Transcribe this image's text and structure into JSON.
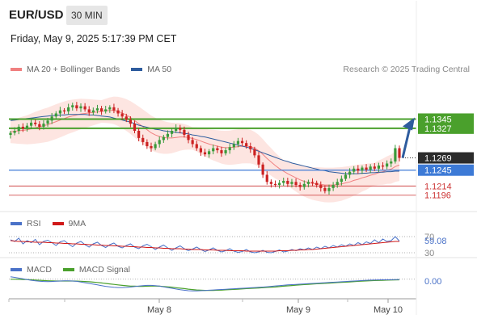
{
  "header": {
    "symbol": "EUR/USD",
    "timeframe": "30 MIN",
    "datetime": "Friday, May 9, 2025 5:17:39 PM CET"
  },
  "legend_main": [
    {
      "label": "MA 20 + Bollinger Bands",
      "color": "#f08080"
    },
    {
      "label": "MA 50",
      "color": "#2e5c9e"
    }
  ],
  "credit": "Research © 2025 Trading Central",
  "legend_rsi": [
    {
      "label": "RSI",
      "color": "#4a72c8"
    },
    {
      "label": "9MA",
      "color": "#d01818"
    }
  ],
  "legend_macd": [
    {
      "label": "MACD",
      "color": "#4a72c8"
    },
    {
      "label": "MACD Signal",
      "color": "#4aa02c"
    }
  ],
  "colors": {
    "green_level": "#4aa02c",
    "blue_level": "#3d7ad6",
    "red_level": "#cc3333",
    "current_badge": "#2b2b2b",
    "arrow": "#2e5c9e",
    "candle_up": "#3a9a3a",
    "candle_down": "#cc2222"
  },
  "chart_data": {
    "type": "candlestick",
    "price_axis": {
      "min": 1.1175,
      "max": 1.142
    },
    "x_ticks": [
      "May 8",
      "May 9",
      "May 10"
    ],
    "levels": [
      {
        "value": 1.1345,
        "label": "1.1345",
        "style": "green-badge"
      },
      {
        "value": 1.1327,
        "label": "1.1327",
        "style": "green-badge"
      },
      {
        "value": 1.1269,
        "label": "1.1269",
        "style": "current-badge"
      },
      {
        "value": 1.1245,
        "label": "1.1245",
        "style": "blue-badge"
      },
      {
        "value": 1.1214,
        "label": "1.1214",
        "style": "red-line"
      },
      {
        "value": 1.1196,
        "label": "1.1196",
        "style": "red-line"
      }
    ],
    "close": [
      1.1318,
      1.1322,
      1.133,
      1.1326,
      1.1332,
      1.1338,
      1.1335,
      1.133,
      1.1336,
      1.1342,
      1.135,
      1.1356,
      1.1362,
      1.136,
      1.1368,
      1.1372,
      1.1366,
      1.137,
      1.1364,
      1.1358,
      1.1362,
      1.1366,
      1.136,
      1.1364,
      1.1368,
      1.1362,
      1.1356,
      1.135,
      1.1344,
      1.1336,
      1.1322,
      1.1308,
      1.13,
      1.1292,
      1.1288,
      1.1296,
      1.1304,
      1.131,
      1.1316,
      1.1322,
      1.1328,
      1.1324,
      1.1314,
      1.1304,
      1.1296,
      1.1288,
      1.128,
      1.1276,
      1.1282,
      1.1288,
      1.1284,
      1.1278,
      1.1284,
      1.129,
      1.1296,
      1.1302,
      1.1298,
      1.1292,
      1.1286,
      1.1274,
      1.1256,
      1.1236,
      1.1222,
      1.1218,
      1.1216,
      1.122,
      1.1224,
      1.1218,
      1.1222,
      1.1216,
      1.1212,
      1.1218,
      1.1222,
      1.122,
      1.1216,
      1.121,
      1.1204,
      1.121,
      1.1216,
      1.1222,
      1.1228,
      1.1236,
      1.1242,
      1.1248,
      1.1244,
      1.125,
      1.1246,
      1.1252,
      1.1248,
      1.1254,
      1.1252,
      1.1258,
      1.1262,
      1.1288,
      1.1269
    ],
    "ma20": [
      1.132,
      1.1321,
      1.1322,
      1.1323,
      1.1324,
      1.1326,
      1.1328,
      1.133,
      1.1332,
      1.1334,
      1.1337,
      1.134,
      1.1343,
      1.1346,
      1.1349,
      1.1351,
      1.1353,
      1.1355,
      1.1356,
      1.1357,
      1.1358,
      1.1359,
      1.136,
      1.1361,
      1.1362,
      1.1362,
      1.136,
      1.1357,
      1.1353,
      1.1348,
      1.1342,
      1.1336,
      1.133,
      1.1324,
      1.1318,
      1.1314,
      1.1311,
      1.1309,
      1.1308,
      1.1308,
      1.1309,
      1.131,
      1.131,
      1.1309,
      1.1307,
      1.1305,
      1.1302,
      1.1299,
      1.1296,
      1.1294,
      1.1292,
      1.129,
      1.1289,
      1.1289,
      1.129,
      1.1291,
      1.1292,
      1.1292,
      1.1291,
      1.1288,
      1.1283,
      1.1276,
      1.1268,
      1.1261,
      1.1254,
      1.1248,
      1.1243,
      1.1238,
      1.1234,
      1.123,
      1.1226,
      1.1223,
      1.1221,
      1.1219,
      1.1218,
      1.1217,
      1.1216,
      1.1216,
      1.1216,
      1.1217,
      1.1218,
      1.122,
      1.1222,
      1.1225,
      1.1227,
      1.123,
      1.1232,
      1.1235,
      1.1237,
      1.124,
      1.1242,
      1.1245,
      1.1247,
      1.1252,
      1.1255
    ],
    "ma50": [
      1.1342,
      1.1343,
      1.1344,
      1.1345,
      1.1346,
      1.1347,
      1.1348,
      1.1349,
      1.135,
      1.1351,
      1.1352,
      1.1352,
      1.1353,
      1.1353,
      1.1354,
      1.1354,
      1.1354,
      1.1354,
      1.1354,
      1.1353,
      1.1353,
      1.1352,
      1.1351,
      1.135,
      1.1349,
      1.1347,
      1.1345,
      1.1343,
      1.1341,
      1.1339,
      1.1336,
      1.1333,
      1.1331,
      1.1329,
      1.1327,
      1.1325,
      1.1324,
      1.1322,
      1.1321,
      1.132,
      1.1319,
      1.1318,
      1.1317,
      1.1316,
      1.1314,
      1.1313,
      1.1311,
      1.131,
      1.1308,
      1.1306,
      1.1304,
      1.1302,
      1.13,
      1.1298,
      1.1296,
      1.1294,
      1.1292,
      1.129,
      1.1288,
      1.1285,
      1.1282,
      1.1279,
      1.1276,
      1.1273,
      1.127,
      1.1267,
      1.1264,
      1.1262,
      1.1259,
      1.1257,
      1.1255,
      1.1253,
      1.1251,
      1.1249,
      1.1247,
      1.1245,
      1.1244,
      1.1242,
      1.1241,
      1.124,
      1.1239,
      1.1238,
      1.1238,
      1.1238,
      1.1238,
      1.1239,
      1.1239,
      1.124,
      1.124,
      1.1241,
      1.1241,
      1.1242,
      1.1242,
      1.1243,
      1.1243
    ],
    "rsi": {
      "value_label": "59.08",
      "levels": [
        "70",
        "30"
      ],
      "range": [
        20,
        80
      ],
      "rsi": [
        62,
        58,
        66,
        52,
        60,
        55,
        63,
        50,
        58,
        61,
        55,
        48,
        57,
        60,
        52,
        45,
        54,
        58,
        50,
        44,
        52,
        56,
        48,
        43,
        50,
        54,
        46,
        42,
        48,
        52,
        44,
        40,
        47,
        51,
        45,
        38,
        44,
        49,
        42,
        36,
        42,
        47,
        40,
        35,
        39,
        44,
        38,
        33,
        37,
        42,
        36,
        32,
        35,
        40,
        34,
        31,
        33,
        38,
        32,
        30,
        32,
        36,
        31,
        30,
        33,
        37,
        32,
        34,
        38,
        35,
        40,
        37,
        42,
        38,
        44,
        40,
        46,
        42,
        48,
        44,
        50,
        46,
        52,
        48,
        55,
        50,
        57,
        53,
        62,
        55,
        64,
        58,
        60,
        70,
        59
      ],
      "ma9": [
        60,
        59,
        58,
        58,
        57,
        57,
        56,
        56,
        56,
        55,
        55,
        54,
        54,
        53,
        53,
        52,
        52,
        51,
        51,
        50,
        50,
        49,
        49,
        48,
        48,
        47,
        47,
        46,
        46,
        45,
        45,
        44,
        44,
        43,
        43,
        42,
        42,
        41,
        41,
        40,
        40,
        40,
        39,
        39,
        38,
        38,
        38,
        37,
        37,
        37,
        36,
        36,
        36,
        35,
        35,
        35,
        35,
        34,
        34,
        34,
        34,
        34,
        34,
        34,
        34,
        35,
        35,
        35,
        36,
        36,
        37,
        37,
        38,
        38,
        39,
        40,
        41,
        42,
        43,
        44,
        45,
        46,
        47,
        48,
        49,
        50,
        51,
        52,
        53,
        54,
        55,
        56,
        57,
        58,
        58
      ]
    },
    "macd": {
      "value_label": "0.00",
      "range": [
        -1,
        1
      ],
      "macd": [
        0.55,
        0.5,
        0.44,
        0.38,
        0.32,
        0.26,
        0.22,
        0.18,
        0.16,
        0.15,
        0.16,
        0.18,
        0.2,
        0.22,
        0.22,
        0.2,
        0.17,
        0.12,
        0.06,
        0.0,
        -0.06,
        -0.12,
        -0.18,
        -0.24,
        -0.28,
        -0.32,
        -0.34,
        -0.34,
        -0.33,
        -0.3,
        -0.26,
        -0.22,
        -0.18,
        -0.16,
        -0.16,
        -0.18,
        -0.22,
        -0.28,
        -0.34,
        -0.4,
        -0.46,
        -0.52,
        -0.56,
        -0.6,
        -0.62,
        -0.62,
        -0.6,
        -0.58,
        -0.56,
        -0.54,
        -0.52,
        -0.5,
        -0.48,
        -0.46,
        -0.44,
        -0.42,
        -0.4,
        -0.38,
        -0.36,
        -0.34,
        -0.32,
        -0.3,
        -0.27,
        -0.24,
        -0.21,
        -0.18,
        -0.15,
        -0.12,
        -0.1,
        -0.08,
        -0.06,
        -0.04,
        -0.02,
        0.0,
        0.02,
        0.04,
        0.06,
        0.08,
        0.1,
        0.12,
        0.14,
        0.16,
        0.18,
        0.2,
        0.22,
        0.24,
        0.26,
        0.27,
        0.28,
        0.29,
        0.3,
        0.3,
        0.31,
        0.32,
        0.33
      ],
      "signal": [
        0.35,
        0.35,
        0.34,
        0.33,
        0.32,
        0.3,
        0.28,
        0.26,
        0.24,
        0.22,
        0.21,
        0.2,
        0.2,
        0.2,
        0.2,
        0.2,
        0.19,
        0.18,
        0.16,
        0.14,
        0.11,
        0.08,
        0.04,
        0.0,
        -0.04,
        -0.08,
        -0.12,
        -0.16,
        -0.19,
        -0.22,
        -0.23,
        -0.24,
        -0.24,
        -0.23,
        -0.22,
        -0.22,
        -0.23,
        -0.25,
        -0.28,
        -0.31,
        -0.35,
        -0.39,
        -0.43,
        -0.47,
        -0.51,
        -0.54,
        -0.56,
        -0.57,
        -0.57,
        -0.57,
        -0.56,
        -0.55,
        -0.53,
        -0.51,
        -0.49,
        -0.47,
        -0.45,
        -0.43,
        -0.41,
        -0.39,
        -0.37,
        -0.35,
        -0.33,
        -0.31,
        -0.29,
        -0.26,
        -0.23,
        -0.2,
        -0.17,
        -0.14,
        -0.12,
        -0.09,
        -0.07,
        -0.05,
        -0.03,
        -0.01,
        0.01,
        0.03,
        0.05,
        0.07,
        0.09,
        0.11,
        0.13,
        0.15,
        0.17,
        0.19,
        0.21,
        0.22,
        0.24,
        0.25,
        0.26,
        0.27,
        0.28,
        0.29,
        0.3
      ]
    }
  }
}
